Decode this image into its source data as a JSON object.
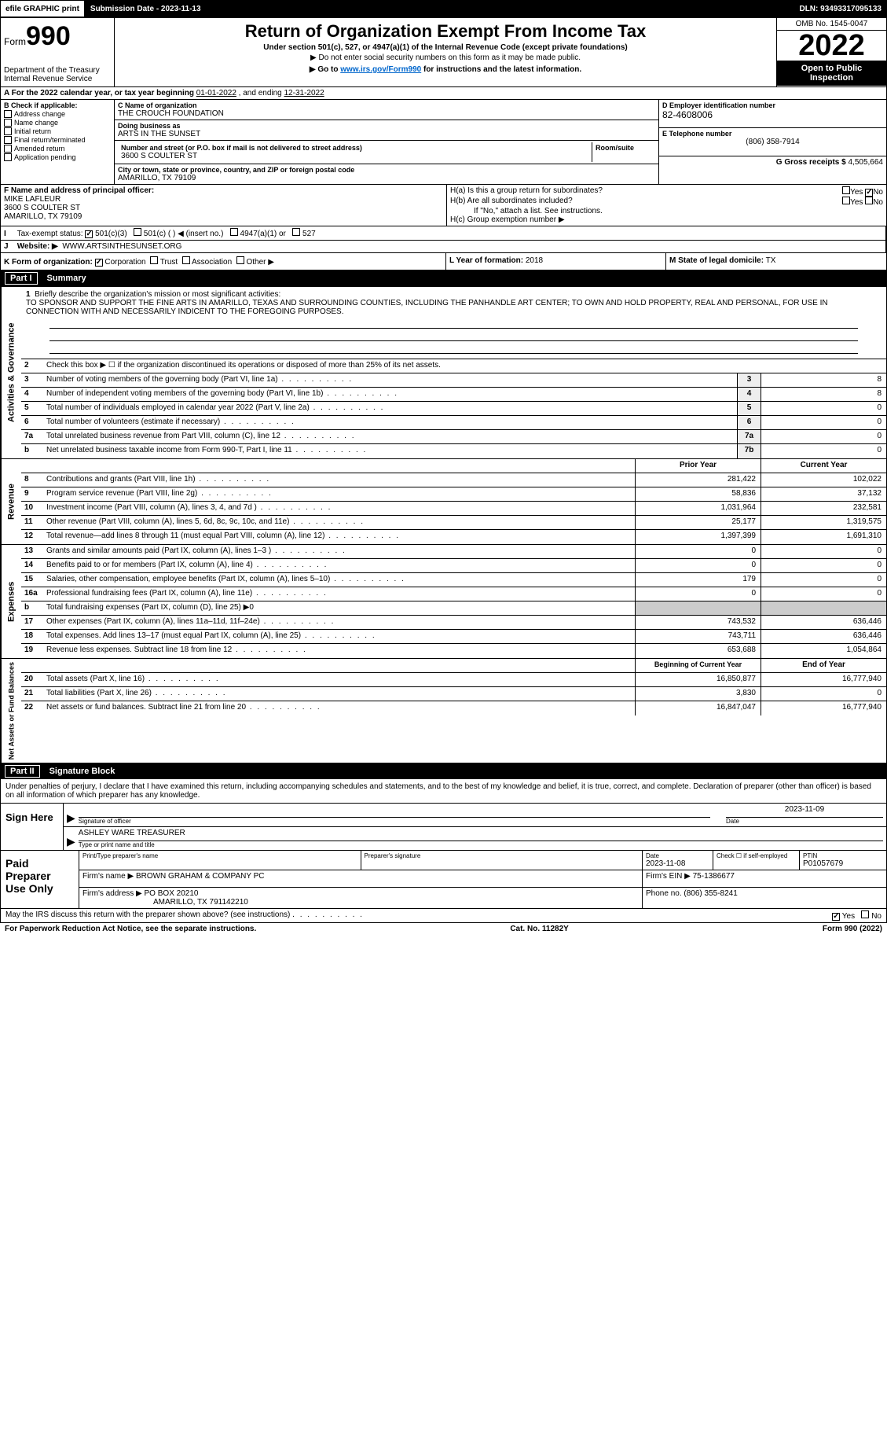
{
  "topbar": {
    "efile": "efile GRAPHIC print",
    "submission": "Submission Date - 2023-11-13",
    "dln": "DLN: 93493317095133"
  },
  "header": {
    "form_word": "Form",
    "form_num": "990",
    "title": "Return of Organization Exempt From Income Tax",
    "subtitle": "Under section 501(c), 527, or 4947(a)(1) of the Internal Revenue Code (except private foundations)",
    "note1": "▶ Do not enter social security numbers on this form as it may be made public.",
    "note2_pre": "▶ Go to ",
    "note2_link": "www.irs.gov/Form990",
    "note2_post": " for instructions and the latest information.",
    "dept": "Department of the Treasury",
    "irs": "Internal Revenue Service",
    "omb": "OMB No. 1545-0047",
    "year": "2022",
    "open": "Open to Public Inspection"
  },
  "period": {
    "text_pre": "A For the 2022 calendar year, or tax year beginning ",
    "begin": "01-01-2022",
    "mid": " , and ending ",
    "end": "12-31-2022"
  },
  "box_b": {
    "label": "B Check if applicable:",
    "items": [
      "Address change",
      "Name change",
      "Initial return",
      "Final return/terminated",
      "Amended return",
      "Application pending"
    ]
  },
  "box_c": {
    "name_lbl": "C Name of organization",
    "name": "THE CROUCH FOUNDATION",
    "dba_lbl": "Doing business as",
    "dba": "ARTS IN THE SUNSET",
    "addr_lbl": "Number and street (or P.O. box if mail is not delivered to street address)",
    "room_lbl": "Room/suite",
    "addr": "3600 S COULTER ST",
    "city_lbl": "City or town, state or province, country, and ZIP or foreign postal code",
    "city": "AMARILLO, TX  79109"
  },
  "box_d": {
    "ein_lbl": "D Employer identification number",
    "ein": "82-4608006",
    "tel_lbl": "E Telephone number",
    "tel": "(806) 358-7914",
    "gross_lbl": "G Gross receipts $",
    "gross": "4,505,664"
  },
  "box_f": {
    "lbl": "F  Name and address of principal officer:",
    "name": "MIKE LAFLEUR",
    "addr1": "3600 S COULTER ST",
    "addr2": "AMARILLO, TX  79109"
  },
  "box_h": {
    "a": "H(a)  Is this a group return for subordinates?",
    "b": "H(b)  Are all subordinates included?",
    "b_note": "If \"No,\" attach a list. See instructions.",
    "c": "H(c)  Group exemption number ▶",
    "yes": "Yes",
    "no": "No"
  },
  "box_i": {
    "lbl": "Tax-exempt status:",
    "o1": "501(c)(3)",
    "o2": "501(c) (   ) ◀ (insert no.)",
    "o3": "4947(a)(1) or",
    "o4": "527"
  },
  "box_j": {
    "lbl": "Website: ▶",
    "val": "WWW.ARTSINTHESUNSET.ORG"
  },
  "box_k": {
    "lbl": "K Form of organization:",
    "o1": "Corporation",
    "o2": "Trust",
    "o3": "Association",
    "o4": "Other ▶"
  },
  "box_l": {
    "lbl": "L Year of formation:",
    "val": "2018"
  },
  "box_m": {
    "lbl": "M State of legal domicile:",
    "val": "TX"
  },
  "part1": {
    "label": "Part I",
    "title": "Summary"
  },
  "mission": {
    "num": "1",
    "lbl": "Briefly describe the organization's mission or most significant activities:",
    "text": "TO SPONSOR AND SUPPORT THE FINE ARTS IN AMARILLO, TEXAS AND SURROUNDING COUNTIES, INCLUDING THE PANHANDLE ART CENTER; TO OWN AND HOLD PROPERTY, REAL AND PERSONAL, FOR USE IN CONNECTION WITH AND NECESSARILY INDICENT TO THE FOREGOING PURPOSES."
  },
  "lines_ag": [
    {
      "n": "2",
      "d": "Check this box ▶ ☐  if the organization discontinued its operations or disposed of more than 25% of its net assets.",
      "box": "",
      "v": ""
    },
    {
      "n": "3",
      "d": "Number of voting members of the governing body (Part VI, line 1a)",
      "box": "3",
      "v": "8"
    },
    {
      "n": "4",
      "d": "Number of independent voting members of the governing body (Part VI, line 1b)",
      "box": "4",
      "v": "8"
    },
    {
      "n": "5",
      "d": "Total number of individuals employed in calendar year 2022 (Part V, line 2a)",
      "box": "5",
      "v": "0"
    },
    {
      "n": "6",
      "d": "Total number of volunteers (estimate if necessary)",
      "box": "6",
      "v": "0"
    },
    {
      "n": "7a",
      "d": "Total unrelated business revenue from Part VIII, column (C), line 12",
      "box": "7a",
      "v": "0"
    },
    {
      "n": "b",
      "d": "Net unrelated business taxable income from Form 990-T, Part I, line 11",
      "box": "7b",
      "v": "0"
    }
  ],
  "col_hdrs": {
    "prior": "Prior Year",
    "current": "Current Year"
  },
  "lines_rev": [
    {
      "n": "8",
      "d": "Contributions and grants (Part VIII, line 1h)",
      "p": "281,422",
      "c": "102,022"
    },
    {
      "n": "9",
      "d": "Program service revenue (Part VIII, line 2g)",
      "p": "58,836",
      "c": "37,132"
    },
    {
      "n": "10",
      "d": "Investment income (Part VIII, column (A), lines 3, 4, and 7d )",
      "p": "1,031,964",
      "c": "232,581"
    },
    {
      "n": "11",
      "d": "Other revenue (Part VIII, column (A), lines 5, 6d, 8c, 9c, 10c, and 11e)",
      "p": "25,177",
      "c": "1,319,575"
    },
    {
      "n": "12",
      "d": "Total revenue—add lines 8 through 11 (must equal Part VIII, column (A), line 12)",
      "p": "1,397,399",
      "c": "1,691,310"
    }
  ],
  "lines_exp": [
    {
      "n": "13",
      "d": "Grants and similar amounts paid (Part IX, column (A), lines 1–3 )",
      "p": "0",
      "c": "0"
    },
    {
      "n": "14",
      "d": "Benefits paid to or for members (Part IX, column (A), line 4)",
      "p": "0",
      "c": "0"
    },
    {
      "n": "15",
      "d": "Salaries, other compensation, employee benefits (Part IX, column (A), lines 5–10)",
      "p": "179",
      "c": "0"
    },
    {
      "n": "16a",
      "d": "Professional fundraising fees (Part IX, column (A), line 11e)",
      "p": "0",
      "c": "0"
    },
    {
      "n": "b",
      "d": "Total fundraising expenses (Part IX, column (D), line 25) ▶0",
      "p": "",
      "c": ""
    },
    {
      "n": "17",
      "d": "Other expenses (Part IX, column (A), lines 11a–11d, 11f–24e)",
      "p": "743,532",
      "c": "636,446"
    },
    {
      "n": "18",
      "d": "Total expenses. Add lines 13–17 (must equal Part IX, column (A), line 25)",
      "p": "743,711",
      "c": "636,446"
    },
    {
      "n": "19",
      "d": "Revenue less expenses. Subtract line 18 from line 12",
      "p": "653,688",
      "c": "1,054,864"
    }
  ],
  "col_hdrs2": {
    "begin": "Beginning of Current Year",
    "end": "End of Year"
  },
  "lines_net": [
    {
      "n": "20",
      "d": "Total assets (Part X, line 16)",
      "p": "16,850,877",
      "c": "16,777,940"
    },
    {
      "n": "21",
      "d": "Total liabilities (Part X, line 26)",
      "p": "3,830",
      "c": "0"
    },
    {
      "n": "22",
      "d": "Net assets or fund balances. Subtract line 21 from line 20",
      "p": "16,847,047",
      "c": "16,777,940"
    }
  ],
  "side_labels": {
    "ag": "Activities & Governance",
    "rev": "Revenue",
    "exp": "Expenses",
    "net": "Net Assets or Fund Balances"
  },
  "part2": {
    "label": "Part II",
    "title": "Signature Block"
  },
  "sig": {
    "intro": "Under penalties of perjury, I declare that I have examined this return, including accompanying schedules and statements, and to the best of my knowledge and belief, it is true, correct, and complete. Declaration of preparer (other than officer) is based on all information of which preparer has any knowledge.",
    "sign_here": "Sign Here",
    "sig_officer": "Signature of officer",
    "date": "Date",
    "date_val": "2023-11-09",
    "name": "ASHLEY WARE  TREASURER",
    "name_lbl": "Type or print name and title"
  },
  "paid": {
    "label": "Paid Preparer Use Only",
    "h1": "Print/Type preparer's name",
    "h2": "Preparer's signature",
    "h3": "Date",
    "h3v": "2023-11-08",
    "h4": "Check ☐ if self-employed",
    "h5": "PTIN",
    "h5v": "P01057679",
    "firm_name_lbl": "Firm's name    ▶",
    "firm_name": "BROWN GRAHAM & COMPANY PC",
    "firm_ein_lbl": "Firm's EIN ▶",
    "firm_ein": "75-1386677",
    "firm_addr_lbl": "Firm's address ▶",
    "firm_addr1": "PO BOX 20210",
    "firm_addr2": "AMARILLO, TX  791142210",
    "phone_lbl": "Phone no.",
    "phone": "(806) 355-8241"
  },
  "footer": {
    "discuss": "May the IRS discuss this return with the preparer shown above? (see instructions)",
    "yes": "Yes",
    "no": "No",
    "pra": "For Paperwork Reduction Act Notice, see the separate instructions.",
    "cat": "Cat. No. 11282Y",
    "form": "Form 990 (2022)"
  }
}
